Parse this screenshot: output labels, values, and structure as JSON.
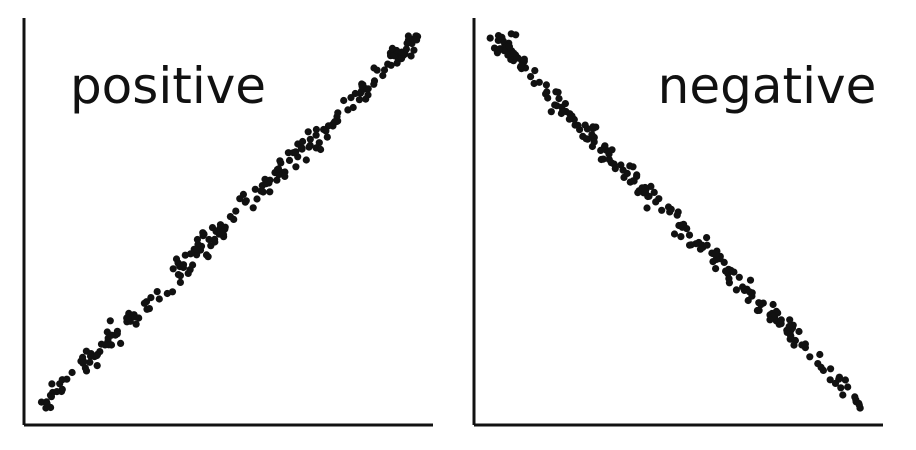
{
  "chart_data": [
    {
      "type": "scatter",
      "title": "positive",
      "xlabel": "",
      "ylabel": "",
      "xlim": [
        0,
        1
      ],
      "ylim": [
        0,
        1
      ],
      "grid": false,
      "n_points": 220,
      "trend": {
        "slope": 1.0,
        "intercept": 0.0
      },
      "noise_sd": 0.018,
      "seed": 7,
      "color": "#111111"
    },
    {
      "type": "scatter",
      "title": "negative",
      "xlabel": "",
      "ylabel": "",
      "xlim": [
        0,
        1
      ],
      "ylim": [
        0,
        1
      ],
      "grid": false,
      "n_points": 220,
      "trend": {
        "slope": -1.0,
        "intercept": 1.0
      },
      "noise_sd": 0.018,
      "seed": 11,
      "color": "#111111"
    }
  ]
}
